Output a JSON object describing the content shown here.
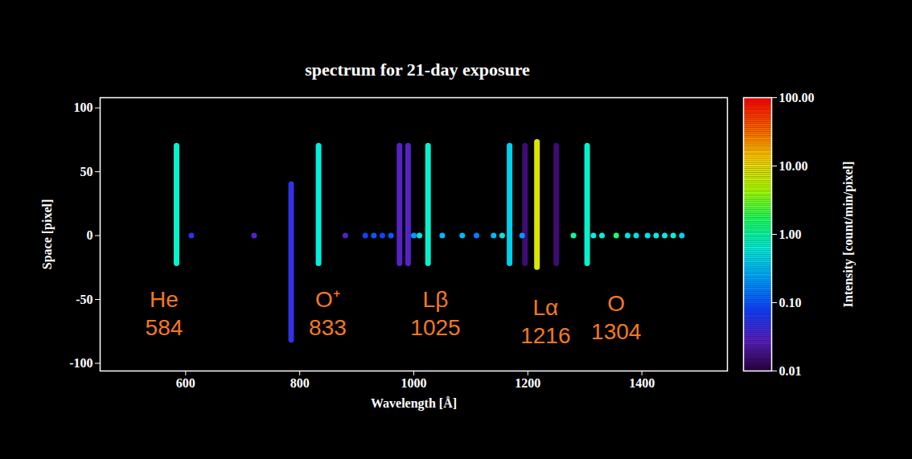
{
  "chart_data": {
    "type": "heatmap",
    "title": "spectrum for 21-day exposure",
    "x_label": "Wavelength [Å]",
    "y_label": "Space [pixel]",
    "xlim": [
      450,
      1550
    ],
    "xticks": [
      600,
      800,
      1000,
      1200,
      1400
    ],
    "ylim": [
      -106,
      108
    ],
    "yticks": [
      -100,
      -50,
      0,
      50,
      100
    ],
    "grid": false,
    "emission_lines": {
      "wavelength": [
        584,
        785,
        833,
        975,
        990,
        1025,
        1168,
        1195,
        1216,
        1250,
        1304
      ],
      "space_from": [
        -22,
        -82,
        -22,
        -22,
        -22,
        -22,
        -22,
        -22,
        -25,
        -22,
        -22
      ],
      "space_to": [
        70,
        40,
        70,
        70,
        70,
        70,
        70,
        70,
        73,
        70,
        70
      ],
      "intensity": [
        0.7,
        0.05,
        0.6,
        0.03,
        0.03,
        0.7,
        0.4,
        0.015,
        8,
        0.015,
        0.7
      ]
    },
    "point_source": {
      "space": 0,
      "wavelength": [
        610,
        720,
        880,
        915,
        930,
        945,
        960,
        1000,
        1010,
        1050,
        1085,
        1110,
        1140,
        1155,
        1190,
        1280,
        1315,
        1330,
        1355,
        1375,
        1390,
        1410,
        1425,
        1440,
        1455,
        1470
      ],
      "intensity": [
        0.05,
        0.03,
        0.03,
        0.08,
        0.1,
        0.08,
        0.1,
        0.2,
        0.5,
        0.3,
        0.3,
        0.15,
        0.3,
        0.5,
        0.2,
        1,
        0.6,
        0.6,
        1.5,
        0.5,
        0.5,
        0.5,
        0.6,
        0.6,
        0.7,
        0.4
      ]
    },
    "annotations": {
      "color": "#f47920",
      "items": [
        {
          "lines": [
            "He",
            "584"
          ],
          "x": 562,
          "y": -60
        },
        {
          "lines": [
            "O⁺",
            "833"
          ],
          "x": 849,
          "y": -60
        },
        {
          "lines": [
            "Lβ",
            "1025"
          ],
          "x": 1038,
          "y": -60
        },
        {
          "lines": [
            "Lα",
            "1216"
          ],
          "x": 1231,
          "y": -66
        },
        {
          "lines": [
            "O",
            "1304"
          ],
          "x": 1355,
          "y": -63
        }
      ]
    },
    "colorbar": {
      "label": "Intensity [count/min/pixel]",
      "log": true,
      "lim": [
        0.01,
        100
      ],
      "ticks": [
        0.01,
        {
          "value": 0.1,
          "label": "0.10"
        },
        {
          "value": 1,
          "label": "1.00"
        },
        {
          "value": 10,
          "label": "10.00"
        },
        {
          "value": 100,
          "label": "100.00"
        }
      ]
    }
  }
}
